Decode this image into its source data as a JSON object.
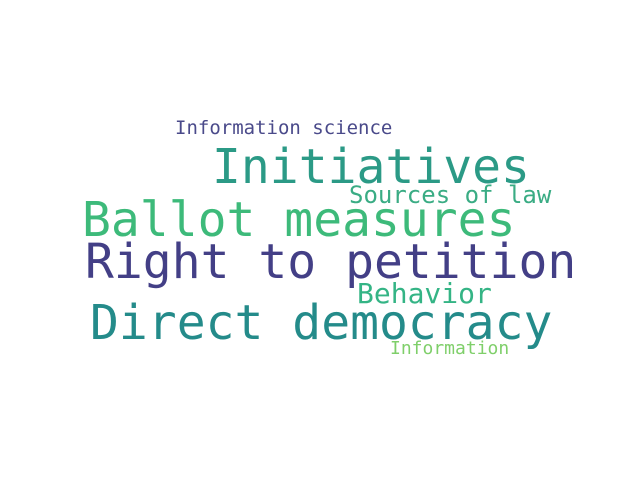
{
  "words": [
    {
      "key": "info_science",
      "text": "Information science",
      "color": "#4a4a8a"
    },
    {
      "key": "initiatives",
      "text": "Initiatives",
      "color": "#2b9a86"
    },
    {
      "key": "sources",
      "text": "Sources of law",
      "color": "#3aac84"
    },
    {
      "key": "ballot",
      "text": "Ballot measures",
      "color": "#3dba7a"
    },
    {
      "key": "right",
      "text": "Right to petition",
      "color": "#433f86"
    },
    {
      "key": "behavior",
      "text": "Behavior",
      "color": "#34b485"
    },
    {
      "key": "direct",
      "text": "Direct democracy",
      "color": "#248b8a"
    },
    {
      "key": "information",
      "text": "Information",
      "color": "#7fcf6a"
    }
  ]
}
